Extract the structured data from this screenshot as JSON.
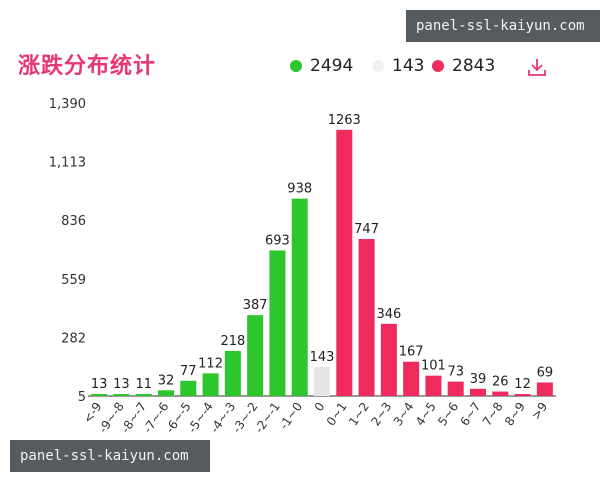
{
  "title": "涨跌分布统计",
  "legend": [
    {
      "label": "2494",
      "color": "#2dc72d"
    },
    {
      "label": "143",
      "color": "#f0f0f0"
    },
    {
      "label": "2843",
      "color": "#ef2a5c"
    }
  ],
  "icons": {
    "download": "download-icon"
  },
  "watermarks": {
    "top": "panel-ssl-kaiyun.com",
    "bottom": "panel-ssl-kaiyun.com"
  },
  "colors": {
    "up": "#ef2a5c",
    "down": "#2dc72d",
    "flat": "#e6e6e6",
    "title": "#e8366e"
  },
  "chart_data": {
    "type": "bar",
    "title": "涨跌分布统计",
    "xlabel": "",
    "ylabel": "",
    "ylim": [
      5,
      1390
    ],
    "yticks": [
      "5",
      "282",
      "559",
      "836",
      "1,113",
      "1,390"
    ],
    "ytick_values": [
      5,
      282,
      559,
      836,
      1113,
      1390
    ],
    "categories": [
      "<-9",
      "-9~-8",
      "-8~-7",
      "-7~-6",
      "-6~-5",
      "-5~-4",
      "-4~-3",
      "-3~-2",
      "-2~-1",
      "-1~0",
      "0",
      "0~1",
      "1~2",
      "2~3",
      "3~4",
      "4~5",
      "5~6",
      "6~7",
      "7~8",
      "8~9",
      ">9"
    ],
    "values": [
      13,
      13,
      11,
      32,
      77,
      112,
      218,
      387,
      693,
      938,
      143,
      1263,
      747,
      346,
      167,
      101,
      73,
      39,
      26,
      12,
      69
    ],
    "groups": [
      "down",
      "down",
      "down",
      "down",
      "down",
      "down",
      "down",
      "down",
      "down",
      "down",
      "flat",
      "up",
      "up",
      "up",
      "up",
      "up",
      "up",
      "up",
      "up",
      "up",
      "up"
    ],
    "legend_placement": "top-right",
    "grid": false
  }
}
